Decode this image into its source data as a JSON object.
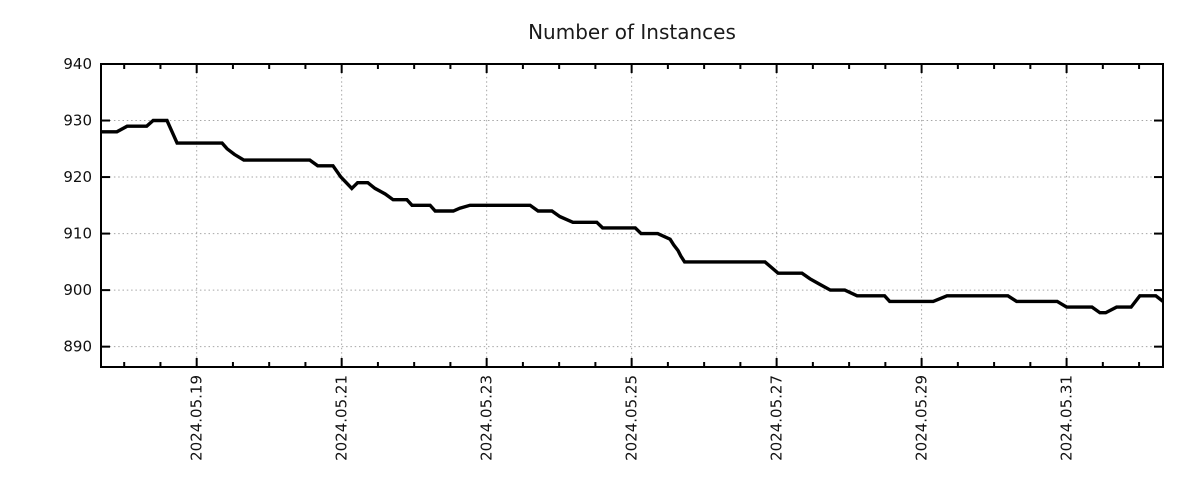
{
  "chart_data": {
    "type": "line",
    "title": "Number of Instances",
    "legend": "none",
    "grid": "dotted",
    "x_axis": {
      "unit": "date",
      "tick_labels": [
        "2024.05.19",
        "2024.05.21",
        "2024.05.23",
        "2024.05.25",
        "2024.05.27",
        "2024.05.29",
        "2024.05.31"
      ],
      "tick_offsets_days": [
        0,
        2,
        4,
        6,
        8,
        10,
        12
      ],
      "minor_tick_interval_days": 0.5,
      "range_days": [
        -1.32,
        13.33
      ]
    },
    "y_axis": {
      "ticks": [
        890,
        900,
        910,
        920,
        930,
        940
      ],
      "gridline_ticks": [
        890,
        900,
        910,
        920,
        930
      ],
      "range": [
        886.4,
        940
      ]
    },
    "series": [
      {
        "name": "instances",
        "color": "#000000",
        "points_days_value": [
          [
            -1.32,
            928
          ],
          [
            -1.1,
            928
          ],
          [
            -0.96,
            929
          ],
          [
            -0.69,
            929
          ],
          [
            -0.6,
            930
          ],
          [
            -0.41,
            930
          ],
          [
            -0.27,
            926
          ],
          [
            0.35,
            926
          ],
          [
            0.42,
            925
          ],
          [
            0.52,
            924
          ],
          [
            0.65,
            923
          ],
          [
            1.56,
            923
          ],
          [
            1.67,
            922
          ],
          [
            1.88,
            922
          ],
          [
            1.99,
            920
          ],
          [
            2.14,
            918
          ],
          [
            2.22,
            919
          ],
          [
            2.36,
            919
          ],
          [
            2.46,
            918
          ],
          [
            2.6,
            917
          ],
          [
            2.71,
            916
          ],
          [
            2.9,
            916
          ],
          [
            2.97,
            915
          ],
          [
            3.22,
            915
          ],
          [
            3.29,
            914
          ],
          [
            3.54,
            914
          ],
          [
            3.63,
            914.5
          ],
          [
            3.77,
            915
          ],
          [
            4.6,
            915
          ],
          [
            4.71,
            914
          ],
          [
            4.9,
            914
          ],
          [
            5.01,
            913
          ],
          [
            5.19,
            912
          ],
          [
            5.52,
            912
          ],
          [
            5.6,
            911
          ],
          [
            6.05,
            911
          ],
          [
            6.13,
            910
          ],
          [
            6.36,
            910
          ],
          [
            6.53,
            909
          ],
          [
            6.58,
            908
          ],
          [
            6.64,
            907
          ],
          [
            6.68,
            906
          ],
          [
            6.73,
            905
          ],
          [
            7.84,
            905
          ],
          [
            7.93,
            904
          ],
          [
            8.02,
            903
          ],
          [
            8.35,
            903
          ],
          [
            8.46,
            902
          ],
          [
            8.6,
            901
          ],
          [
            8.74,
            900
          ],
          [
            8.94,
            900
          ],
          [
            9.11,
            899
          ],
          [
            9.49,
            899
          ],
          [
            9.56,
            898
          ],
          [
            10.16,
            898
          ],
          [
            10.35,
            899
          ],
          [
            11.19,
            899
          ],
          [
            11.31,
            898
          ],
          [
            11.87,
            898
          ],
          [
            12.0,
            897
          ],
          [
            12.35,
            897
          ],
          [
            12.46,
            896
          ],
          [
            12.54,
            896
          ],
          [
            12.69,
            897
          ],
          [
            12.89,
            897
          ],
          [
            13.01,
            899
          ],
          [
            13.23,
            899
          ],
          [
            13.33,
            898
          ]
        ]
      }
    ],
    "colors": {
      "background": "#ffffff",
      "line": "#000000",
      "grid": "#a6a6a6",
      "border": "#000000",
      "text": "#1a1a1a"
    }
  }
}
